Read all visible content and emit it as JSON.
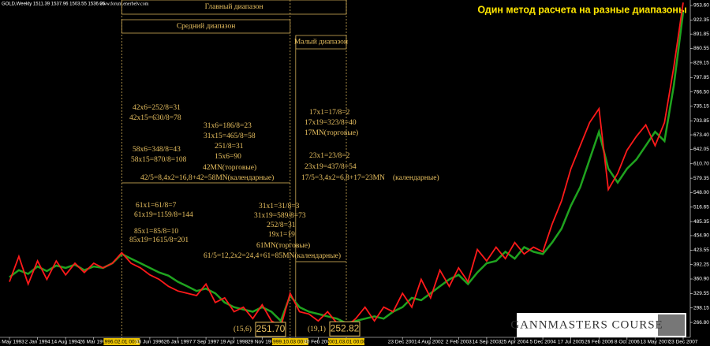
{
  "chart_data": {
    "type": "line",
    "title": "Один метод расчета на разные диапазоны",
    "symbol_info": "GOLD,Weekly  1511.39 1537.96 1503.55 1536.05",
    "watermark": "www.forum.enerbelv.com",
    "logo": "GANNMASTERS  COURSE",
    "categories": [
      "23 May 1993",
      null,
      null,
      "2 Jan 1994",
      null,
      null,
      "14 Aug 1994",
      null,
      null,
      "26 Mar 1995",
      null,
      null,
      "1996.02.01 00:00",
      null,
      null,
      "16 Jun 1996",
      null,
      null,
      "26 Jan 1997",
      null,
      null,
      "7 Sep 1997",
      null,
      null,
      "19 Apr 1998",
      null,
      null,
      "29 Nov 1998",
      null,
      null,
      "1999.10.03 00:00",
      null,
      null,
      "20 Feb 2000",
      null,
      null,
      "2001.03.01 00:00",
      null,
      null,
      null,
      null,
      null,
      "23 Dec 2001",
      null,
      null,
      "4 Aug 2002",
      null,
      null,
      "2 Feb 2003",
      null,
      null,
      "14 Sep 2003",
      null,
      null,
      "25 Apr 2004",
      null,
      null,
      "5 Dec 2004",
      null,
      null,
      "17 Jul 2005",
      null,
      null,
      "26 Feb 2006",
      null,
      null,
      "8 Oct 2006",
      null,
      null,
      "13 May 2007",
      null,
      null,
      "23 Dec 2007"
    ],
    "series": [
      {
        "name": "GOLD",
        "color": "#1fa31f",
        "values": [
          365,
          380,
          372,
          388,
          378,
          390,
          385,
          392,
          380,
          388,
          385,
          395,
          415,
          405,
          395,
          385,
          375,
          368,
          355,
          345,
          335,
          340,
          330,
          310,
          300,
          295,
          290,
          300,
          290,
          270,
          325,
          300,
          290,
          285,
          280,
          275,
          265,
          270,
          275,
          280,
          275,
          290,
          300,
          320,
          315,
          330,
          345,
          360,
          370,
          350,
          375,
          395,
          400,
          420,
          405,
          430,
          420,
          415,
          440,
          470,
          520,
          560,
          620,
          680,
          600,
          570,
          600,
          620,
          650,
          680,
          660,
          780,
          940
        ]
      },
      {
        "name": "ZigZag",
        "color": "#ff1a1a",
        "values": [
          355,
          410,
          350,
          400,
          360,
          400,
          370,
          395,
          375,
          395,
          385,
          395,
          418,
          395,
          385,
          370,
          360,
          345,
          335,
          330,
          325,
          350,
          310,
          320,
          290,
          300,
          275,
          305,
          270,
          258,
          330,
          290,
          285,
          270,
          290,
          265,
          258,
          275,
          300,
          270,
          300,
          290,
          330,
          300,
          360,
          320,
          380,
          345,
          385,
          355,
          425,
          400,
          430,
          405,
          440,
          415,
          430,
          420,
          480,
          530,
          600,
          650,
          700,
          730,
          555,
          590,
          640,
          670,
          695,
          650,
          700,
          820,
          960
        ]
      }
    ],
    "ylim": [
      234.5,
      965.6
    ],
    "yticks": [
      {
        "value": 266.8,
        "label": "266.80"
      },
      298.15,
      329.55,
      {
        "value": 360.9,
        "label": "360.90"
      },
      392.25,
      423.55,
      {
        "value": 454.9,
        "label": "454.90"
      },
      485.35,
      516.65,
      {
        "value": 548,
        "label": "548.00"
      },
      579.35,
      {
        "value": 610.7,
        "label": "610.70"
      },
      642.05,
      {
        "value": 673.4,
        "label": "673.40"
      },
      703.85,
      735.15,
      {
        "value": 766.5,
        "label": "766.50"
      },
      797.85,
      829.15,
      860.55,
      891.85,
      922.35,
      {
        "value": 953.6,
        "label": "953.60"
      }
    ],
    "range_headers": [
      "Главный диапазон",
      "Средний диапазон",
      "Малый диапазон"
    ],
    "price_labels": [
      {
        "value": 251.7,
        "label": "251.70"
      },
      {
        "value": 252.82,
        "label": "252.82"
      }
    ],
    "annotations": [
      "42x6=252/8=31",
      "42x15=630/8=78",
      "31x6=186/8=23",
      "31x15=465/8=58",
      "251/8=31",
      "58x6=348/8=43",
      "58x15=870/8=108",
      "15x6=90",
      "42MN(торговые)",
      "42/5=8,4x2=16,8+42=58MN(календарные)",
      "17x1=17/8=2",
      "17x19=323/8=40",
      "17MN(торговые)",
      "23x1=23/8=2",
      "23x19=437/8=54",
      "17/5=3,4x2=6,8+17=23MN",
      "(календарные)",
      "61x1=61/8=7",
      "61x19=1159/8=144",
      "85x1=85/8=10",
      "85x19=1615/8=201",
      "31x1=31/8=3",
      "31x19=589/8=73",
      "252/8=31",
      "19x1=19",
      "61MN(торговые)",
      "61/5=12,2x2=24,4+61=85MN(календарные)",
      "(15,6)",
      "(19,1)"
    ]
  }
}
